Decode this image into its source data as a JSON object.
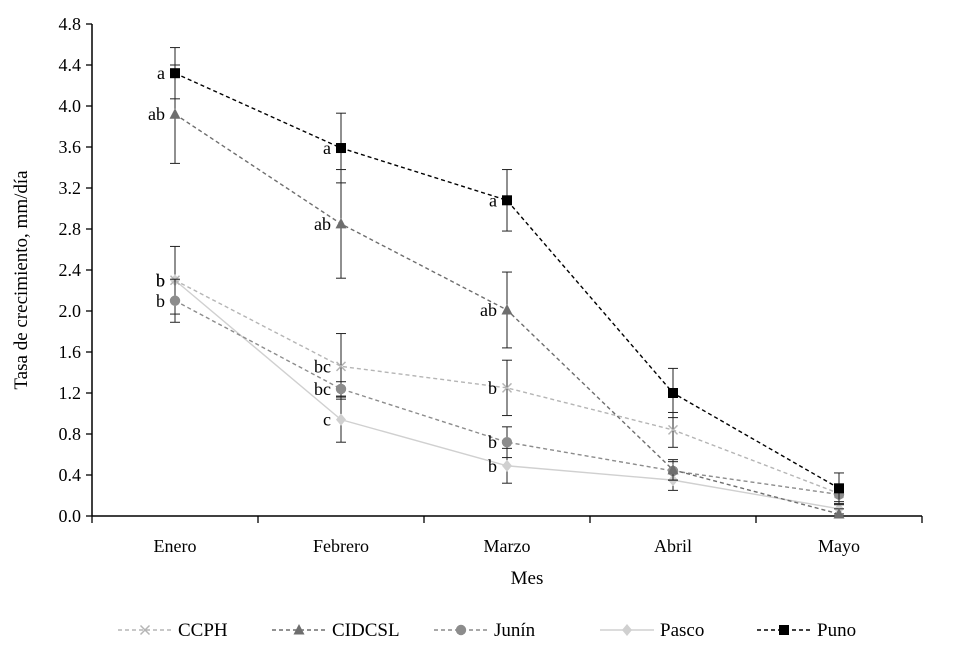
{
  "chart_data": {
    "type": "line",
    "title": "",
    "xlabel": "Mes",
    "ylabel": "Tasa de crecimiento, mm/día",
    "categories": [
      "Enero",
      "Febrero",
      "Marzo",
      "Abril",
      "Mayo"
    ],
    "ylim": [
      0,
      4.8
    ],
    "y_ticks": [
      "0.0",
      "0.4",
      "0.8",
      "1.2",
      "1.6",
      "2.0",
      "2.4",
      "2.8",
      "3.2",
      "3.6",
      "4.0",
      "4.4",
      "4.8"
    ],
    "grid": false,
    "legend_position": "bottom",
    "series": [
      {
        "name": "CCPH",
        "marker": "x",
        "color": "#b5b5b5",
        "dash": "dashed",
        "values": [
          2.3,
          1.46,
          1.25,
          0.84,
          0.22
        ],
        "error": [
          null,
          0.32,
          0.27,
          0.17,
          0.08
        ],
        "labels": [
          "b",
          "bc",
          "b",
          "",
          ""
        ]
      },
      {
        "name": "CIDCSL",
        "marker": "triangle",
        "color": "#6e6e6e",
        "dash": "dashed",
        "values": [
          3.92,
          2.85,
          2.01,
          0.45,
          0.02
        ],
        "error": [
          0.48,
          0.53,
          0.37,
          0.1,
          0.05
        ],
        "labels": [
          "ab",
          "ab",
          "ab",
          "",
          ""
        ]
      },
      {
        "name": "Junín",
        "marker": "circle",
        "color": "#8c8c8c",
        "dash": "dashed",
        "values": [
          2.1,
          1.24,
          0.72,
          0.44,
          0.21
        ],
        "error": [
          0.21,
          0.07,
          0.15,
          0.09,
          0.1
        ],
        "labels": [
          "b",
          "bc",
          "b",
          "",
          ""
        ]
      },
      {
        "name": "Pasco",
        "marker": "diamond",
        "color": "#d0d0d0",
        "dash": "solid",
        "values": [
          2.3,
          0.94,
          0.49,
          0.35,
          0.07
        ],
        "error": [
          0.33,
          0.22,
          0.17,
          0.1,
          0.05
        ],
        "labels": [
          "b",
          "c",
          "b",
          "",
          ""
        ]
      },
      {
        "name": "Puno",
        "marker": "square",
        "color": "#000000",
        "dash": "dashed",
        "values": [
          4.32,
          3.59,
          3.08,
          1.2,
          0.27
        ],
        "error": [
          0.25,
          0.34,
          0.3,
          0.24,
          0.15
        ],
        "labels": [
          "a",
          "a",
          "a",
          "",
          ""
        ]
      }
    ]
  }
}
